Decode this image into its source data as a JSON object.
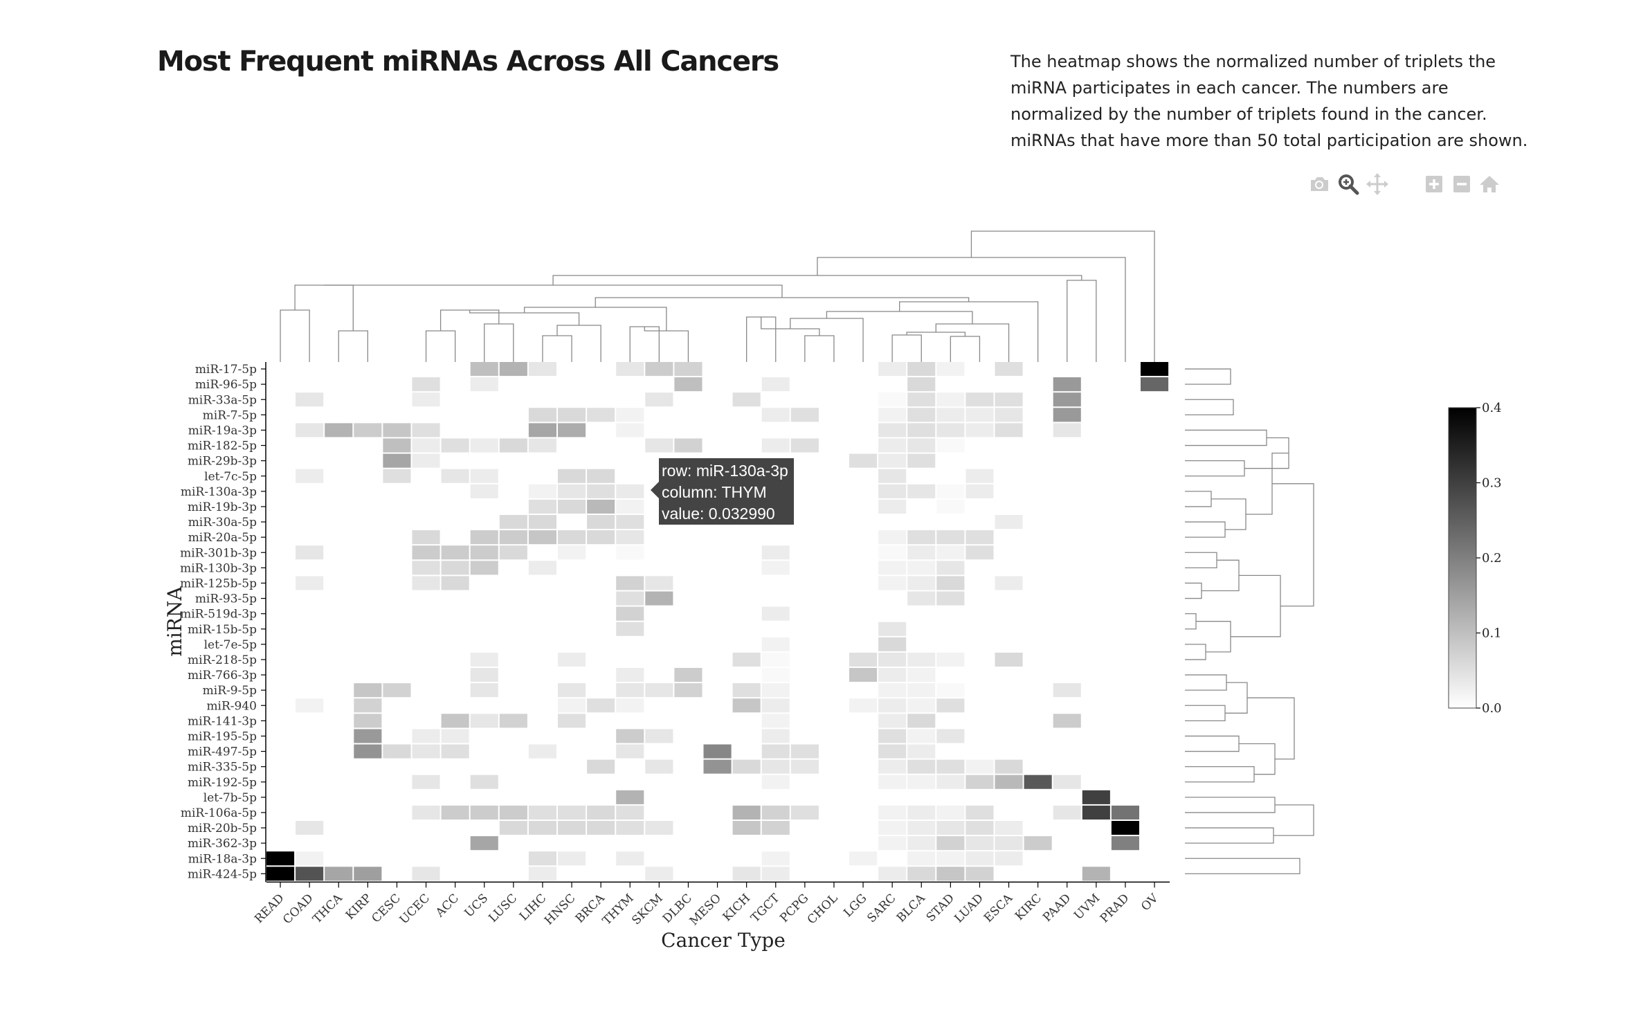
{
  "page": {
    "title": "Most Frequent miRNAs Across All Cancers",
    "description": "The heatmap shows the normalized number of triplets the miRNA participates in each cancer. The numbers are normalized by the number of triplets found in the cancer. miRNAs that have more than 50 total participation are shown."
  },
  "toolbar": {
    "buttons": [
      {
        "icon": "camera-icon",
        "active": false
      },
      {
        "icon": "zoom-icon",
        "active": true
      },
      {
        "icon": "pan-icon",
        "active": false
      },
      {
        "icon": "zoom-in-icon",
        "active": false
      },
      {
        "icon": "zoom-out-icon",
        "active": false
      },
      {
        "icon": "home-icon",
        "active": false
      }
    ]
  },
  "tooltip": {
    "row": "row: miR-130a-3p",
    "column": "column: THYM",
    "value": "value: 0.032990"
  },
  "chart_data": {
    "type": "heatmap",
    "title": "Most Frequent miRNAs Across All Cancers",
    "xlabel": "Cancer Type",
    "ylabel": "miRNA",
    "colorscale": {
      "min": 0.0,
      "max": 0.4,
      "low_color": "#ffffff",
      "high_color": "#000000",
      "ticks": [
        "0.0",
        "0.1",
        "0.2",
        "0.3",
        "0.4"
      ]
    },
    "columns": [
      "READ",
      "COAD",
      "THCA",
      "KIRP",
      "CESC",
      "UCEC",
      "ACC",
      "UCS",
      "LUSC",
      "LIHC",
      "HNSC",
      "BRCA",
      "THYM",
      "SKCM",
      "DLBC",
      "MESO",
      "KICH",
      "TGCT",
      "PCPG",
      "CHOL",
      "LGG",
      "SARC",
      "BLCA",
      "STAD",
      "LUAD",
      "ESCA",
      "KIRC",
      "PAAD",
      "UVM",
      "PRAD",
      "OV"
    ],
    "rows": [
      "miR-17-5p",
      "miR-96-5p",
      "miR-33a-5p",
      "miR-7-5p",
      "miR-19a-3p",
      "miR-182-5p",
      "miR-29b-3p",
      "let-7c-5p",
      "miR-130a-3p",
      "miR-19b-3p",
      "miR-30a-5p",
      "miR-20a-5p",
      "miR-301b-3p",
      "miR-130b-3p",
      "miR-125b-5p",
      "miR-93-5p",
      "miR-519d-3p",
      "miR-15b-5p",
      "let-7e-5p",
      "miR-218-5p",
      "miR-766-3p",
      "miR-9-5p",
      "miR-940",
      "miR-141-3p",
      "miR-195-5p",
      "miR-497-5p",
      "miR-335-5p",
      "miR-192-5p",
      "let-7b-5p",
      "miR-106a-5p",
      "miR-20b-5p",
      "miR-362-3p",
      "miR-18a-3p",
      "miR-424-5p"
    ],
    "values": [
      [
        0,
        0,
        0,
        0,
        0,
        0,
        0,
        0.1,
        0.12,
        0.04,
        0,
        0,
        0.04,
        0.08,
        0.07,
        0,
        0,
        0,
        0,
        0,
        0,
        0.03,
        0.06,
        0.02,
        0,
        0.05,
        0,
        0,
        0,
        0,
        0.4
      ],
      [
        0,
        0,
        0,
        0,
        0,
        0.05,
        0,
        0.03,
        0,
        0,
        0,
        0,
        0,
        0,
        0.1,
        0,
        0,
        0.03,
        0,
        0,
        0,
        0,
        0.06,
        0,
        0,
        0,
        0,
        0.16,
        0,
        0,
        0.24
      ],
      [
        0,
        0.04,
        0,
        0,
        0,
        0.03,
        0,
        0,
        0,
        0,
        0,
        0,
        0,
        0.04,
        0,
        0,
        0.05,
        0,
        0,
        0,
        0,
        0.01,
        0.05,
        0.02,
        0.05,
        0.05,
        0,
        0.16,
        0,
        0,
        0
      ],
      [
        0,
        0,
        0,
        0,
        0,
        0,
        0,
        0,
        0,
        0.06,
        0.06,
        0.05,
        0.02,
        0,
        0,
        0,
        0,
        0.03,
        0.05,
        0,
        0,
        0.02,
        0.05,
        0.03,
        0.03,
        0.04,
        0,
        0.16,
        0,
        0,
        0
      ],
      [
        0,
        0.04,
        0.12,
        0.08,
        0.09,
        0.05,
        0,
        0,
        0,
        0.14,
        0.13,
        0,
        0.02,
        0,
        0,
        0,
        0,
        0,
        0,
        0,
        0,
        0.04,
        0.05,
        0.04,
        0.03,
        0.05,
        0,
        0.04,
        0,
        0,
        0
      ],
      [
        0,
        0,
        0,
        0,
        0.1,
        0.03,
        0.05,
        0.03,
        0.06,
        0.04,
        0,
        0,
        0,
        0.04,
        0.07,
        0,
        0,
        0.03,
        0.05,
        0,
        0,
        0.03,
        0.04,
        0.01,
        0,
        0,
        0,
        0,
        0,
        0,
        0
      ],
      [
        0,
        0,
        0,
        0,
        0.14,
        0.03,
        0,
        0,
        0,
        0,
        0,
        0,
        0,
        0,
        0,
        0,
        0,
        0,
        0,
        0,
        0.05,
        0.03,
        0.05,
        0,
        0,
        0,
        0,
        0,
        0,
        0,
        0
      ],
      [
        0,
        0.03,
        0,
        0,
        0.05,
        0,
        0.04,
        0.03,
        0,
        0,
        0.06,
        0.06,
        0,
        0,
        0,
        0,
        0,
        0,
        0,
        0,
        0,
        0.04,
        0,
        0,
        0.03,
        0,
        0,
        0,
        0,
        0,
        0
      ],
      [
        0,
        0,
        0,
        0,
        0,
        0,
        0,
        0.03,
        0,
        0.02,
        0.04,
        0.05,
        0.033,
        0,
        0,
        0,
        0,
        0,
        0,
        0,
        0,
        0.04,
        0.04,
        0.01,
        0.03,
        0,
        0,
        0,
        0,
        0,
        0
      ],
      [
        0,
        0,
        0,
        0,
        0,
        0,
        0,
        0,
        0,
        0.05,
        0.06,
        0.11,
        0.02,
        0,
        0,
        0,
        0,
        0,
        0,
        0,
        0,
        0.03,
        0,
        0.01,
        0,
        0,
        0,
        0,
        0,
        0,
        0
      ],
      [
        0,
        0,
        0,
        0,
        0,
        0,
        0,
        0,
        0.06,
        0.06,
        0,
        0.06,
        0.05,
        0,
        0,
        0,
        0,
        0,
        0,
        0,
        0,
        0,
        0,
        0,
        0,
        0.03,
        0,
        0,
        0,
        0,
        0
      ],
      [
        0,
        0,
        0,
        0,
        0,
        0.06,
        0,
        0.08,
        0.08,
        0.09,
        0.06,
        0.06,
        0.04,
        0,
        0,
        0,
        0,
        0,
        0,
        0,
        0,
        0.02,
        0.05,
        0.05,
        0.05,
        0,
        0,
        0,
        0,
        0,
        0
      ],
      [
        0,
        0.04,
        0,
        0,
        0,
        0.08,
        0.08,
        0.08,
        0.06,
        0,
        0.02,
        0,
        0.01,
        0,
        0,
        0,
        0,
        0.03,
        0,
        0,
        0,
        0.01,
        0.03,
        0.02,
        0.05,
        0,
        0,
        0,
        0,
        0,
        0
      ],
      [
        0,
        0,
        0,
        0,
        0,
        0.05,
        0.06,
        0.08,
        0,
        0.03,
        0,
        0,
        0,
        0,
        0,
        0,
        0,
        0.02,
        0,
        0,
        0,
        0.02,
        0.02,
        0.04,
        0,
        0,
        0,
        0,
        0,
        0,
        0
      ],
      [
        0,
        0.03,
        0,
        0,
        0,
        0.04,
        0.06,
        0,
        0,
        0,
        0,
        0,
        0.07,
        0.04,
        0,
        0,
        0,
        0,
        0,
        0,
        0,
        0.02,
        0.03,
        0.06,
        0,
        0.03,
        0,
        0,
        0,
        0,
        0
      ],
      [
        0,
        0,
        0,
        0,
        0,
        0,
        0,
        0,
        0,
        0,
        0,
        0,
        0.05,
        0.12,
        0,
        0,
        0,
        0,
        0,
        0,
        0,
        0,
        0.04,
        0.05,
        0,
        0,
        0,
        0,
        0,
        0,
        0
      ],
      [
        0,
        0,
        0,
        0,
        0,
        0,
        0,
        0,
        0,
        0,
        0,
        0,
        0.07,
        0,
        0,
        0,
        0,
        0.03,
        0,
        0,
        0,
        0,
        0,
        0,
        0,
        0,
        0,
        0,
        0,
        0,
        0
      ],
      [
        0,
        0,
        0,
        0,
        0,
        0,
        0,
        0,
        0,
        0,
        0,
        0,
        0.05,
        0,
        0,
        0,
        0,
        0,
        0,
        0,
        0,
        0.04,
        0,
        0,
        0,
        0,
        0,
        0,
        0,
        0,
        0
      ],
      [
        0,
        0,
        0,
        0,
        0,
        0,
        0,
        0,
        0,
        0,
        0,
        0,
        0,
        0,
        0,
        0,
        0,
        0.02,
        0,
        0,
        0,
        0.06,
        0,
        0,
        0,
        0,
        0,
        0,
        0,
        0,
        0
      ],
      [
        0,
        0,
        0,
        0,
        0,
        0,
        0,
        0.03,
        0,
        0,
        0.03,
        0,
        0,
        0,
        0,
        0,
        0.05,
        0.01,
        0,
        0,
        0.05,
        0.04,
        0.03,
        0.02,
        0,
        0.06,
        0,
        0,
        0,
        0,
        0
      ],
      [
        0,
        0,
        0,
        0,
        0,
        0,
        0,
        0.04,
        0,
        0,
        0,
        0,
        0.03,
        0,
        0.08,
        0,
        0,
        0.01,
        0,
        0,
        0.09,
        0.03,
        0.02,
        0,
        0,
        0,
        0,
        0,
        0,
        0,
        0
      ],
      [
        0,
        0,
        0,
        0.09,
        0.07,
        0,
        0,
        0.04,
        0,
        0,
        0.04,
        0,
        0.04,
        0.04,
        0.07,
        0,
        0.05,
        0.02,
        0,
        0,
        0,
        0.02,
        0.02,
        0.01,
        0,
        0,
        0,
        0.04,
        0,
        0,
        0
      ],
      [
        0,
        0.02,
        0,
        0.07,
        0,
        0,
        0,
        0,
        0,
        0,
        0.02,
        0.05,
        0.02,
        0,
        0,
        0,
        0.09,
        0.03,
        0,
        0,
        0.02,
        0.03,
        0.02,
        0.05,
        0,
        0,
        0,
        0,
        0,
        0,
        0
      ],
      [
        0,
        0,
        0,
        0.08,
        0,
        0,
        0.09,
        0.04,
        0.07,
        0,
        0.05,
        0,
        0,
        0,
        0,
        0,
        0,
        0.02,
        0,
        0,
        0,
        0.03,
        0.06,
        0,
        0,
        0,
        0,
        0.08,
        0,
        0,
        0
      ],
      [
        0,
        0,
        0,
        0.16,
        0,
        0.03,
        0.03,
        0,
        0,
        0,
        0,
        0,
        0.08,
        0.04,
        0,
        0,
        0,
        0.03,
        0,
        0,
        0,
        0.05,
        0.02,
        0.04,
        0,
        0,
        0,
        0,
        0,
        0,
        0
      ],
      [
        0,
        0,
        0,
        0.17,
        0.06,
        0.04,
        0.05,
        0,
        0,
        0.03,
        0,
        0,
        0.04,
        0,
        0,
        0.19,
        0,
        0.05,
        0.05,
        0,
        0,
        0.05,
        0.03,
        0,
        0,
        0,
        0,
        0,
        0,
        0,
        0
      ],
      [
        0,
        0,
        0,
        0,
        0,
        0,
        0,
        0,
        0,
        0,
        0,
        0.06,
        0,
        0.04,
        0,
        0.17,
        0.06,
        0.04,
        0.04,
        0,
        0,
        0.03,
        0.05,
        0.05,
        0.02,
        0.06,
        0,
        0,
        0,
        0,
        0
      ],
      [
        0,
        0,
        0,
        0,
        0,
        0.04,
        0,
        0.05,
        0,
        0,
        0,
        0,
        0,
        0,
        0,
        0,
        0,
        0.02,
        0,
        0,
        0,
        0.02,
        0.02,
        0.03,
        0.07,
        0.11,
        0.26,
        0.04,
        0,
        0,
        0
      ],
      [
        0,
        0,
        0,
        0,
        0,
        0,
        0,
        0,
        0,
        0,
        0,
        0,
        0.12,
        0,
        0,
        0,
        0,
        0,
        0,
        0,
        0,
        0,
        0,
        0,
        0,
        0,
        0,
        0,
        0.3,
        0,
        0
      ],
      [
        0,
        0,
        0,
        0,
        0,
        0.04,
        0.08,
        0.08,
        0.08,
        0.05,
        0.05,
        0.06,
        0.05,
        0,
        0,
        0,
        0.12,
        0.07,
        0.05,
        0,
        0,
        0.02,
        0.03,
        0.02,
        0.05,
        0,
        0,
        0.04,
        0.3,
        0.22,
        0
      ],
      [
        0,
        0.04,
        0,
        0,
        0,
        0,
        0,
        0,
        0.06,
        0.06,
        0.06,
        0.06,
        0.05,
        0.04,
        0,
        0,
        0.09,
        0.07,
        0,
        0,
        0,
        0.02,
        0.03,
        0.04,
        0.05,
        0.03,
        0,
        0,
        0,
        0.4,
        0
      ],
      [
        0,
        0,
        0,
        0,
        0,
        0,
        0,
        0.14,
        0,
        0,
        0,
        0,
        0,
        0,
        0,
        0,
        0,
        0,
        0,
        0,
        0,
        0.02,
        0.03,
        0.07,
        0.04,
        0.04,
        0.08,
        0,
        0,
        0.2,
        0
      ],
      [
        0.4,
        0.02,
        0,
        0,
        0,
        0,
        0,
        0,
        0,
        0.05,
        0.03,
        0,
        0.03,
        0,
        0,
        0,
        0,
        0.02,
        0,
        0,
        0.02,
        0,
        0.02,
        0.02,
        0.03,
        0.03,
        0,
        0,
        0,
        0,
        0
      ],
      [
        0.4,
        0.27,
        0.14,
        0.15,
        0,
        0.04,
        0,
        0,
        0,
        0.03,
        0,
        0,
        0,
        0.03,
        0,
        0,
        0.04,
        0.03,
        0,
        0,
        0,
        0.03,
        0.06,
        0.09,
        0.07,
        0,
        0,
        0,
        0.12,
        0,
        0
      ]
    ]
  }
}
